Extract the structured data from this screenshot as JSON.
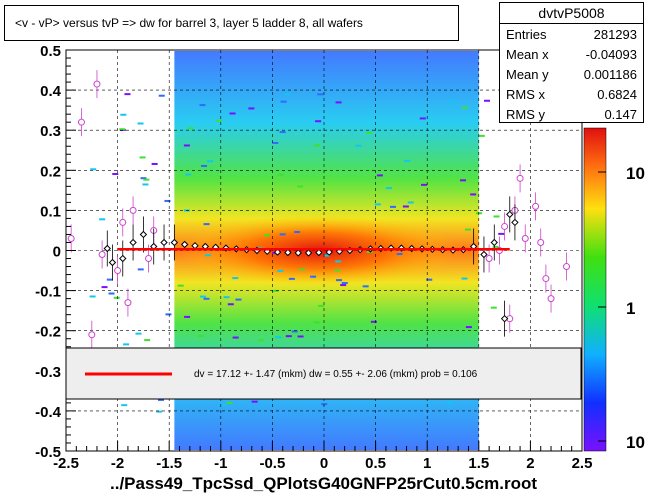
{
  "title": "<v - vP>       versus  tvP =>  dw for barrel 3, layer 5 ladder 8, all wafers",
  "stats": {
    "name": "dvtvP5008",
    "rows": [
      {
        "label": "Entries",
        "value": "281293"
      },
      {
        "label": "Mean x",
        "value": "-0.04093"
      },
      {
        "label": "Mean y",
        "value": "0.001186"
      },
      {
        "label": "RMS x",
        "value": "0.6824"
      },
      {
        "label": "RMS y",
        "value": "0.147"
      }
    ]
  },
  "fit_text": "dv =   17.12 +-  1.47 (mkm) dw =    0.55 +-  2.06 (mkm) prob = 0.106",
  "xlabel": "../Pass49_TpcSsd_QPlotsG40GNFP25rCut0.5cm.root",
  "chart_data": {
    "type": "heatmap",
    "xlim": [
      -2.5,
      2.5
    ],
    "ylim": [
      -0.5,
      0.5
    ],
    "x_ticks": [
      "-2.5",
      "-2",
      "-1.5",
      "-1",
      "-0.5",
      "0",
      "0.5",
      "1",
      "1.5",
      "2",
      "2.5"
    ],
    "y_ticks": [
      "-0.5",
      "-0.4",
      "-0.3",
      "-0.2",
      "-0.1",
      "0",
      "0.1",
      "0.2",
      "0.3",
      "0.4",
      "0.5"
    ],
    "colorbar_ticks": [
      "10",
      "1",
      "10"
    ],
    "grid": true,
    "fit_line": {
      "x": [
        -2.0,
        1.8
      ],
      "y": [
        0.003,
        0.003
      ],
      "color": "#ff0000"
    },
    "profile_black": [
      {
        "x": -2.1,
        "y": 0.005
      },
      {
        "x": -2.05,
        "y": -0.03
      },
      {
        "x": -1.95,
        "y": -0.02
      },
      {
        "x": -1.85,
        "y": 0.02
      },
      {
        "x": -1.75,
        "y": 0.04
      },
      {
        "x": -1.65,
        "y": 0.01
      },
      {
        "x": -1.55,
        "y": 0.02
      },
      {
        "x": -1.45,
        "y": 0.02
      },
      {
        "x": -1.35,
        "y": 0.015
      },
      {
        "x": -1.25,
        "y": 0.012
      },
      {
        "x": -1.15,
        "y": 0.01
      },
      {
        "x": -1.05,
        "y": 0.008
      },
      {
        "x": -0.95,
        "y": 0.006
      },
      {
        "x": -0.85,
        "y": 0.004
      },
      {
        "x": -0.75,
        "y": 0.002
      },
      {
        "x": -0.65,
        "y": 0.0
      },
      {
        "x": -0.55,
        "y": -0.002
      },
      {
        "x": -0.45,
        "y": -0.004
      },
      {
        "x": -0.35,
        "y": -0.005
      },
      {
        "x": -0.25,
        "y": -0.006
      },
      {
        "x": -0.15,
        "y": -0.006
      },
      {
        "x": -0.05,
        "y": -0.005
      },
      {
        "x": 0.05,
        "y": -0.004
      },
      {
        "x": 0.15,
        "y": -0.002
      },
      {
        "x": 0.25,
        "y": 0.0
      },
      {
        "x": 0.35,
        "y": 0.002
      },
      {
        "x": 0.45,
        "y": 0.004
      },
      {
        "x": 0.55,
        "y": 0.005
      },
      {
        "x": 0.65,
        "y": 0.006
      },
      {
        "x": 0.75,
        "y": 0.006
      },
      {
        "x": 0.85,
        "y": 0.005
      },
      {
        "x": 0.95,
        "y": 0.004
      },
      {
        "x": 1.05,
        "y": 0.003
      },
      {
        "x": 1.15,
        "y": 0.002
      },
      {
        "x": 1.25,
        "y": 0.001
      },
      {
        "x": 1.35,
        "y": 0.002
      },
      {
        "x": 1.45,
        "y": 0.01
      },
      {
        "x": 1.55,
        "y": -0.01
      },
      {
        "x": 1.65,
        "y": 0.02
      },
      {
        "x": 1.75,
        "y": -0.17
      },
      {
        "x": 1.8,
        "y": 0.09
      },
      {
        "x": 1.85,
        "y": 0.07
      }
    ],
    "profile_pink": [
      {
        "x": -2.45,
        "y": 0.03
      },
      {
        "x": -2.35,
        "y": 0.32
      },
      {
        "x": -2.25,
        "y": -0.21
      },
      {
        "x": -2.2,
        "y": 0.415
      },
      {
        "x": -2.15,
        "y": -0.01
      },
      {
        "x": -2.0,
        "y": -0.05
      },
      {
        "x": -1.95,
        "y": 0.07
      },
      {
        "x": -1.9,
        "y": -0.13
      },
      {
        "x": -1.85,
        "y": 0.1
      },
      {
        "x": -1.7,
        "y": -0.02
      },
      {
        "x": -1.65,
        "y": 0.05
      },
      {
        "x": 1.6,
        "y": -0.02
      },
      {
        "x": 1.7,
        "y": 0.0
      },
      {
        "x": 1.75,
        "y": 0.06
      },
      {
        "x": 1.8,
        "y": -0.17
      },
      {
        "x": 1.85,
        "y": 0.1
      },
      {
        "x": 1.9,
        "y": 0.18
      },
      {
        "x": 1.95,
        "y": 0.03
      },
      {
        "x": 2.05,
        "y": 0.11
      },
      {
        "x": 2.1,
        "y": 0.02
      },
      {
        "x": 2.15,
        "y": -0.07
      },
      {
        "x": 2.2,
        "y": -0.12
      },
      {
        "x": 2.35,
        "y": -0.04
      }
    ],
    "colors": {
      "line": "#ff0000",
      "profile_pink": "#cc44cc",
      "profile_black": "#000000",
      "legend_bg": "#eeeeee"
    }
  }
}
